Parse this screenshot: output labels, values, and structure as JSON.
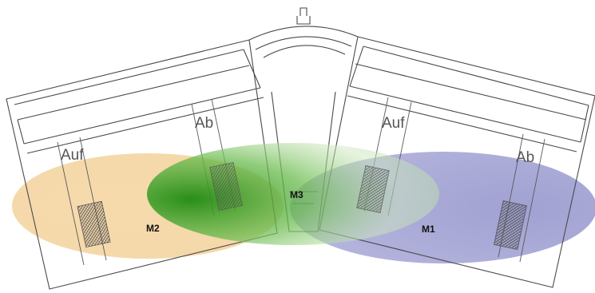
{
  "labels": {
    "left_auf": "Auf",
    "left_ab": "Ab",
    "right_auf": "Auf",
    "right_ab": "Ab",
    "zone_m1": "M1",
    "zone_m2": "M2",
    "zone_m3": "M3"
  },
  "colors": {
    "zone_m1": "#8c8cc8",
    "zone_m2": "#f0c88c",
    "zone_m3": "#2e9a1e",
    "outline": "#4a4a4a",
    "hatch": "#4d4d4d"
  }
}
